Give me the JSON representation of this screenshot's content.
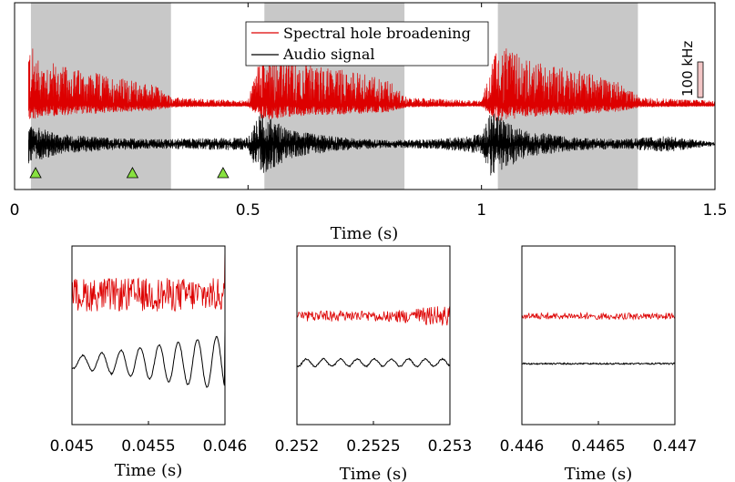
{
  "colors": {
    "red": "#dd0000",
    "black": "#000000",
    "shade": "#c8c8c8",
    "marker": "#88e23f",
    "scale_bar": "#f3c6c6"
  },
  "chart_data": [
    {
      "type": "line",
      "name": "overview",
      "xlabel": "Time (s)",
      "xlim": [
        0,
        1.5
      ],
      "xticks": [
        "0",
        "0.5",
        "1",
        "1.5"
      ],
      "xtick_values": [
        0,
        0.5,
        1,
        1.5
      ],
      "shaded_intervals": [
        [
          0.035,
          0.335
        ],
        [
          0.535,
          0.835
        ],
        [
          1.035,
          1.335
        ]
      ],
      "markers_x": [
        0.045,
        0.2525,
        0.4465
      ],
      "scale_bar_label": "100 kHz",
      "legend": {
        "placement": "top-center",
        "entries": [
          "Spectral hole broadening",
          "Audio signal"
        ]
      },
      "series": [
        {
          "name": "Spectral hole broadening",
          "color": "#dd0000",
          "envelope": [
            [
              0.03,
              1.0
            ],
            [
              0.05,
              0.75
            ],
            [
              0.1,
              0.6
            ],
            [
              0.2,
              0.45
            ],
            [
              0.3,
              0.3
            ],
            [
              0.34,
              0.1
            ],
            [
              0.5,
              0.05
            ],
            [
              0.53,
              0.9
            ],
            [
              0.6,
              0.65
            ],
            [
              0.7,
              0.55
            ],
            [
              0.8,
              0.4
            ],
            [
              0.84,
              0.1
            ],
            [
              1.0,
              0.05
            ],
            [
              1.03,
              0.95
            ],
            [
              1.1,
              0.7
            ],
            [
              1.2,
              0.55
            ],
            [
              1.3,
              0.35
            ],
            [
              1.34,
              0.1
            ],
            [
              1.5,
              0.05
            ]
          ]
        },
        {
          "name": "Audio signal",
          "color": "#000000",
          "envelope": [
            [
              0.03,
              0.6
            ],
            [
              0.1,
              0.3
            ],
            [
              0.2,
              0.2
            ],
            [
              0.3,
              0.15
            ],
            [
              0.5,
              0.2
            ],
            [
              0.52,
              1.0
            ],
            [
              0.6,
              0.4
            ],
            [
              0.7,
              0.2
            ],
            [
              0.8,
              0.12
            ],
            [
              0.9,
              0.15
            ],
            [
              1.0,
              0.3
            ],
            [
              1.02,
              1.0
            ],
            [
              1.1,
              0.4
            ],
            [
              1.2,
              0.2
            ],
            [
              1.3,
              0.15
            ],
            [
              1.4,
              0.25
            ],
            [
              1.5,
              0.05
            ]
          ]
        }
      ]
    },
    {
      "type": "line",
      "name": "zoom-1",
      "xlabel": "Time (s)",
      "xlim": [
        0.045,
        0.046
      ],
      "xticks": [
        "0.045",
        "0.0455",
        "0.046"
      ],
      "xtick_values": [
        0.045,
        0.0455,
        0.046
      ],
      "audio_cycles": 8,
      "audio_amp": [
        0.15,
        0.75
      ],
      "red_noise": 0.7
    },
    {
      "type": "line",
      "name": "zoom-2",
      "xlabel": "Time (s)",
      "xlim": [
        0.252,
        0.253
      ],
      "xticks": [
        "0.252",
        "0.2525",
        "0.253"
      ],
      "xtick_values": [
        0.252,
        0.2525,
        0.253
      ],
      "audio_cycles": 9,
      "audio_amp": [
        0.1,
        0.1
      ],
      "red_noise": 0.35
    },
    {
      "type": "line",
      "name": "zoom-3",
      "xlabel": "Time (s)",
      "xlim": [
        0.446,
        0.447
      ],
      "xticks": [
        "0.446",
        "0.4465",
        "0.447"
      ],
      "xtick_values": [
        0.446,
        0.4465,
        0.447
      ],
      "audio_cycles": 0,
      "audio_amp": [
        0.03,
        0.03
      ],
      "red_noise": 0.15
    }
  ]
}
